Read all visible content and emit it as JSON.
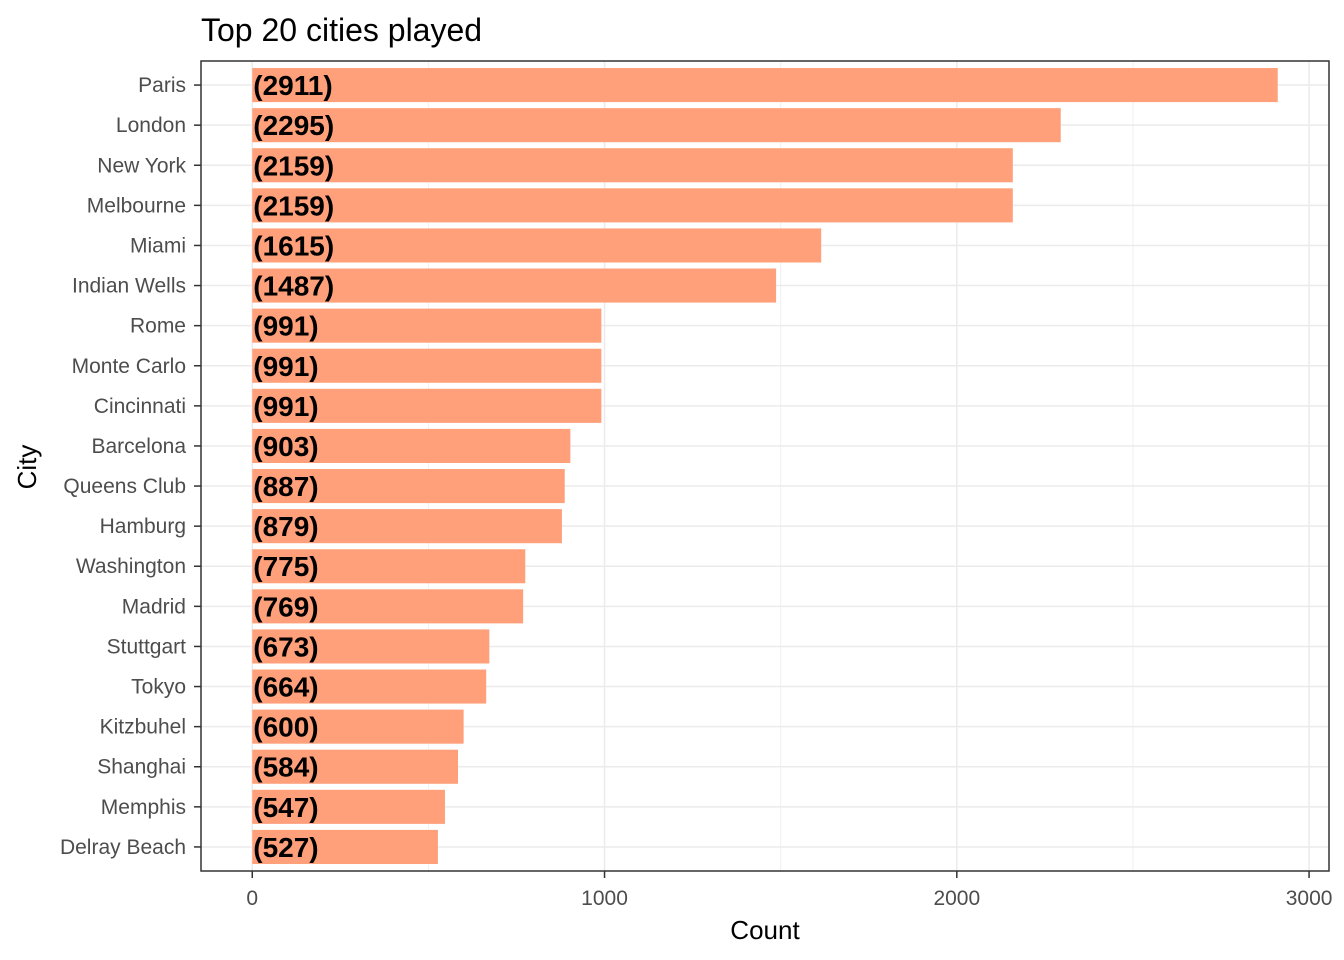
{
  "chart_data": {
    "type": "bar",
    "orientation": "horizontal",
    "title": "Top 20 cities played",
    "xlabel": "Count",
    "ylabel": "City",
    "categories": [
      "Paris",
      "London",
      "New York",
      "Melbourne",
      "Miami",
      "Indian Wells",
      "Rome",
      "Monte Carlo",
      "Cincinnati",
      "Barcelona",
      "Queens Club",
      "Hamburg",
      "Washington",
      "Madrid",
      "Stuttgart",
      "Tokyo",
      "Kitzbuhel",
      "Shanghai",
      "Memphis",
      "Delray Beach"
    ],
    "values": [
      2911,
      2295,
      2159,
      2159,
      1615,
      1487,
      991,
      991,
      991,
      903,
      887,
      879,
      775,
      769,
      673,
      664,
      600,
      584,
      547,
      527
    ],
    "data_labels": [
      "(2911)",
      "(2295)",
      "(2159)",
      "(2159)",
      "(1615)",
      "(1487)",
      "(991)",
      "(991)",
      "(991)",
      "(903)",
      "(887)",
      "(879)",
      "(775)",
      "(769)",
      "(673)",
      "(664)",
      "(600)",
      "(584)",
      "(547)",
      "(527)"
    ],
    "xticks": [
      0,
      1000,
      2000,
      3000
    ],
    "xtick_labels": [
      "0",
      "1000",
      "2000",
      "3000"
    ],
    "xlim": [
      -145.55,
      3056.55
    ],
    "grid": true,
    "legend": "none",
    "bar_color": "#FFA07A"
  }
}
